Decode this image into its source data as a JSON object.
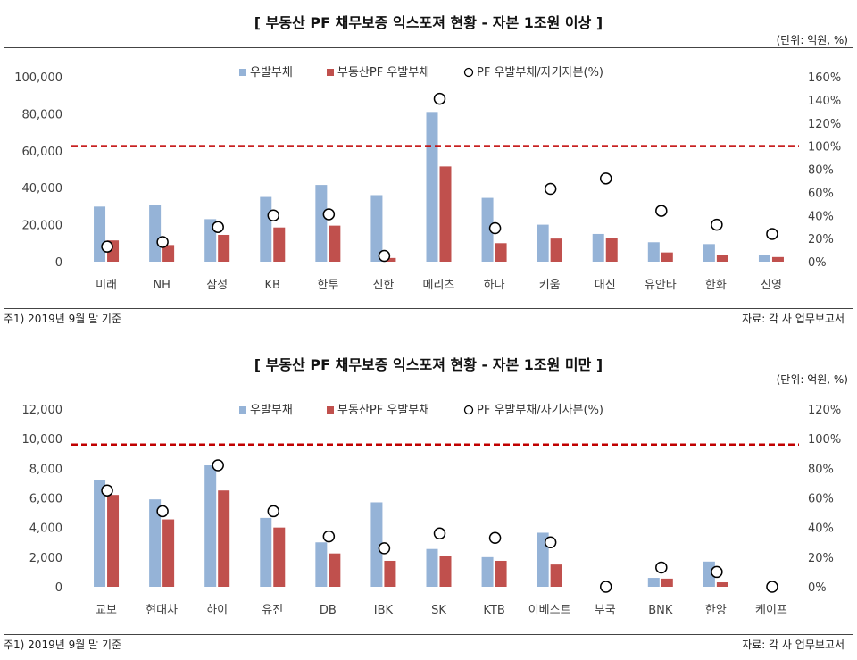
{
  "charts": [
    {
      "title": "[ 부동산 PF 채무보증 익스포져 현황 - 자본 1조원 이상 ]",
      "unit": "(단위: 억원, %)",
      "note": "주1) 2019년 9월 말 기준",
      "source": "자료: 각 사 업무보고서",
      "legend": [
        "우발부채",
        "부동산PF 우발부채",
        "PF 우발부채/자기자본(%)"
      ]
    },
    {
      "title": "[ 부동산 PF 채무보증 익스포져 현황 - 자본 1조원 미만 ]",
      "unit": "(단위: 억원, %)",
      "note": "주1) 2019년 9월 말 기준",
      "source": "자료: 각 사 업무보고서",
      "legend": [
        "우발부채",
        "부동산PF 우발부채",
        "PF 우발부채/자기자본(%)"
      ]
    }
  ],
  "colors": {
    "contingent": "#95b3d7",
    "pf": "#c0504d",
    "ref_line": "#c00000",
    "axis_text": "#404040"
  },
  "chart_data": [
    {
      "type": "bar",
      "categories": [
        "미래",
        "NH",
        "삼성",
        "KB",
        "한투",
        "신한",
        "메리츠",
        "하나",
        "키움",
        "대신",
        "유안타",
        "한화",
        "신영"
      ],
      "series": [
        {
          "name": "우발부채",
          "axis": "left",
          "values": [
            29800,
            30500,
            23000,
            35000,
            41500,
            36000,
            81000,
            34500,
            20000,
            15000,
            10500,
            9500,
            3500
          ]
        },
        {
          "name": "부동산PF 우발부채",
          "axis": "left",
          "values": [
            11500,
            9000,
            14500,
            18500,
            19500,
            2000,
            51500,
            10000,
            12500,
            13000,
            5000,
            3500,
            2500
          ]
        },
        {
          "name": "PF 우발부채/자기자본(%)",
          "axis": "right",
          "type": "scatter",
          "values": [
            13,
            17,
            30,
            40,
            41,
            5,
            141,
            29,
            63,
            72,
            44,
            32,
            24
          ]
        }
      ],
      "reference_line": {
        "axis": "right",
        "value": 100
      },
      "ylim_left": [
        0,
        100000
      ],
      "yticks_left": [
        "0",
        "20,000",
        "40,000",
        "60,000",
        "80,000",
        "100,000"
      ],
      "ylim_right": [
        0,
        160
      ],
      "yticks_right": [
        "0%",
        "20%",
        "40%",
        "60%",
        "80%",
        "100%",
        "120%",
        "140%",
        "160%"
      ],
      "legend_position": "top-center",
      "grid": false
    },
    {
      "type": "bar",
      "categories": [
        "교보",
        "현대차",
        "하이",
        "유진",
        "DB",
        "IBK",
        "SK",
        "KTB",
        "이베스트",
        "부국",
        "BNK",
        "한양",
        "케이프"
      ],
      "series": [
        {
          "name": "우발부채",
          "axis": "left",
          "values": [
            7200,
            5900,
            8200,
            4650,
            3000,
            5700,
            2550,
            2000,
            3650,
            0,
            600,
            1700,
            0
          ]
        },
        {
          "name": "부동산PF 우발부채",
          "axis": "left",
          "values": [
            6200,
            4550,
            6500,
            4000,
            2250,
            1750,
            2050,
            1750,
            1500,
            0,
            550,
            300,
            0
          ]
        },
        {
          "name": "PF 우발부채/자기자본(%)",
          "axis": "right",
          "type": "scatter",
          "values": [
            65,
            51,
            82,
            51,
            34,
            26,
            36,
            33,
            30,
            0,
            13,
            10,
            0
          ]
        }
      ],
      "reference_line": {
        "axis": "right",
        "value": 96
      },
      "ylim_left": [
        0,
        12000
      ],
      "yticks_left": [
        "0",
        "2,000",
        "4,000",
        "6,000",
        "8,000",
        "10,000",
        "12,000"
      ],
      "ylim_right": [
        0,
        120
      ],
      "yticks_right": [
        "0%",
        "20%",
        "40%",
        "60%",
        "80%",
        "100%",
        "120%"
      ],
      "legend_position": "top-center",
      "grid": false
    }
  ]
}
